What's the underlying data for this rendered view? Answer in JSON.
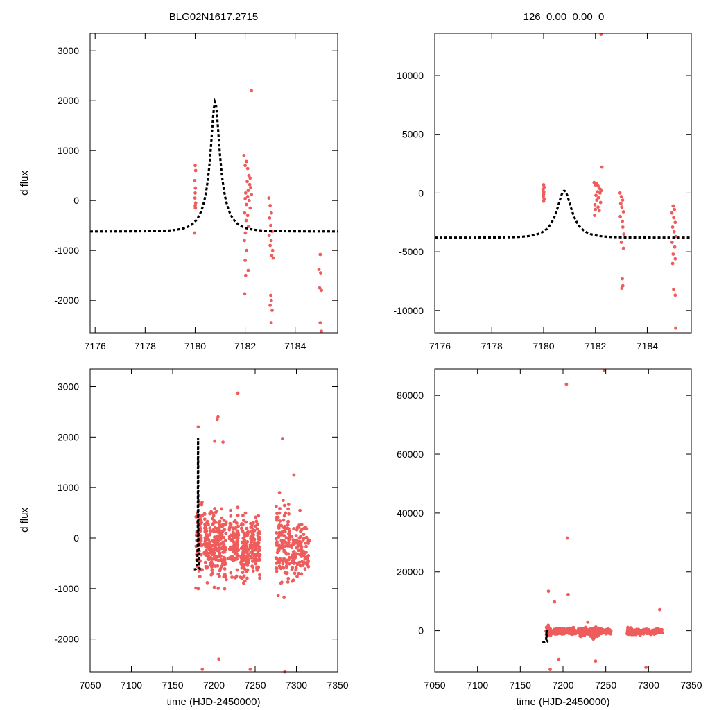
{
  "header": {
    "left_title": "BLG02N1617.2715",
    "right_title": "126  0.00  0.00  0"
  },
  "colors": {
    "data": "#ee5c5c",
    "model": "#000000"
  },
  "chart_data": [
    {
      "id": "zoom-left",
      "type": "scatter",
      "title": "BLG02N1617.2715",
      "xlabel": "",
      "ylabel": "d flux",
      "xlim": [
        7175.8,
        7185.7
      ],
      "ylim": [
        -2650,
        3350
      ],
      "xticks": [
        7176,
        7178,
        7180,
        7182,
        7184
      ],
      "yticks": [
        -2000,
        -1000,
        0,
        1000,
        2000,
        3000
      ],
      "model": {
        "t0": 7180.8,
        "amp": 2600,
        "base": -620,
        "tE": 0.68,
        "u0": 0.26,
        "tmin": 7175.8,
        "tmax": 7185.7
      },
      "points": [
        [
          7180.0,
          700
        ],
        [
          7180.02,
          600
        ],
        [
          7179.98,
          400
        ],
        [
          7180.01,
          250
        ],
        [
          7180.0,
          150
        ],
        [
          7179.99,
          50
        ],
        [
          7180.02,
          -50
        ],
        [
          7180.0,
          -100
        ],
        [
          7180.01,
          -150
        ],
        [
          7179.98,
          -650
        ],
        [
          7181.95,
          900
        ],
        [
          7182.0,
          700
        ],
        [
          7182.05,
          780
        ],
        [
          7182.1,
          640
        ],
        [
          7182.15,
          500
        ],
        [
          7182.2,
          450
        ],
        [
          7182.08,
          380
        ],
        [
          7182.18,
          320
        ],
        [
          7182.22,
          260
        ],
        [
          7182.12,
          200
        ],
        [
          7182.02,
          150
        ],
        [
          7182.25,
          120
        ],
        [
          7182.1,
          80
        ],
        [
          7182.0,
          40
        ],
        [
          7182.16,
          0
        ],
        [
          7182.05,
          -80
        ],
        [
          7182.2,
          -150
        ],
        [
          7181.98,
          -250
        ],
        [
          7182.1,
          -300
        ],
        [
          7182.04,
          -400
        ],
        [
          7182.13,
          -520
        ],
        [
          7182.01,
          -650
        ],
        [
          7181.97,
          -800
        ],
        [
          7182.06,
          -1000
        ],
        [
          7182.0,
          -1200
        ],
        [
          7182.12,
          -1400
        ],
        [
          7182.02,
          -1500
        ],
        [
          7181.98,
          -1870
        ],
        [
          7182.25,
          2200
        ],
        [
          7182.95,
          50
        ],
        [
          7183.0,
          -100
        ],
        [
          7183.05,
          -250
        ],
        [
          7182.98,
          -350
        ],
        [
          7183.02,
          -500
        ],
        [
          7183.08,
          -620
        ],
        [
          7182.96,
          -700
        ],
        [
          7183.04,
          -800
        ],
        [
          7183.0,
          -900
        ],
        [
          7183.1,
          -1000
        ],
        [
          7183.06,
          -1100
        ],
        [
          7183.12,
          -1150
        ],
        [
          7183.02,
          -1900
        ],
        [
          7183.05,
          -2000
        ],
        [
          7183.0,
          -2100
        ],
        [
          7183.08,
          -2200
        ],
        [
          7183.04,
          -2450
        ],
        [
          7185.0,
          -1080
        ],
        [
          7184.95,
          -1380
        ],
        [
          7185.02,
          -1450
        ],
        [
          7184.98,
          -1750
        ],
        [
          7185.05,
          -1800
        ],
        [
          7185.0,
          -2450
        ],
        [
          7185.05,
          -2620
        ]
      ]
    },
    {
      "id": "zoom-right",
      "type": "scatter",
      "title": "126  0.00  0.00  0",
      "xlabel": "",
      "ylabel": "",
      "xlim": [
        7175.8,
        7185.7
      ],
      "ylim": [
        -11900,
        13600
      ],
      "xticks": [
        7176,
        7178,
        7180,
        7182,
        7184
      ],
      "yticks": [
        -10000,
        -5000,
        0,
        5000,
        10000
      ],
      "model": {
        "t0": 7180.8,
        "amp": 4000,
        "base": -3800,
        "tE": 0.65,
        "u0": 0.45,
        "tmin": 7175.8,
        "tmax": 7185.7
      },
      "points": [
        [
          7180.0,
          700
        ],
        [
          7180.02,
          500
        ],
        [
          7179.98,
          300
        ],
        [
          7180.01,
          100
        ],
        [
          7180.0,
          -100
        ],
        [
          7179.99,
          -300
        ],
        [
          7180.02,
          -500
        ],
        [
          7180.0,
          -700
        ],
        [
          7181.95,
          900
        ],
        [
          7182.0,
          700
        ],
        [
          7182.05,
          800
        ],
        [
          7182.1,
          600
        ],
        [
          7182.15,
          400
        ],
        [
          7182.2,
          300
        ],
        [
          7182.22,
          200
        ],
        [
          7182.08,
          100
        ],
        [
          7182.18,
          0
        ],
        [
          7182.02,
          -200
        ],
        [
          7182.12,
          -400
        ],
        [
          7182.05,
          -600
        ],
        [
          7182.2,
          -800
        ],
        [
          7181.98,
          -1000
        ],
        [
          7182.1,
          -1200
        ],
        [
          7182.0,
          -1400
        ],
        [
          7182.15,
          -1500
        ],
        [
          7181.97,
          -1900
        ],
        [
          7182.25,
          2200
        ],
        [
          7182.22,
          13500
        ],
        [
          7182.95,
          0
        ],
        [
          7183.0,
          -300
        ],
        [
          7183.05,
          -600
        ],
        [
          7182.98,
          -900
        ],
        [
          7183.02,
          -1200
        ],
        [
          7183.08,
          -1600
        ],
        [
          7182.96,
          -2000
        ],
        [
          7183.04,
          -2400
        ],
        [
          7183.06,
          -2900
        ],
        [
          7183.1,
          -3500
        ],
        [
          7183.0,
          -4200
        ],
        [
          7183.08,
          -4700
        ],
        [
          7183.04,
          -7300
        ],
        [
          7183.06,
          -7900
        ],
        [
          7183.02,
          -8100
        ],
        [
          7185.0,
          -1100
        ],
        [
          7185.05,
          -1400
        ],
        [
          7184.95,
          -1700
        ],
        [
          7185.02,
          -2100
        ],
        [
          7185.08,
          -2500
        ],
        [
          7184.98,
          -2900
        ],
        [
          7185.04,
          -3300
        ],
        [
          7185.1,
          -3700
        ],
        [
          7184.96,
          -4200
        ],
        [
          7185.06,
          -4600
        ],
        [
          7185.0,
          -5200
        ],
        [
          7185.08,
          -5600
        ],
        [
          7184.98,
          -6000
        ],
        [
          7185.02,
          -8200
        ],
        [
          7185.08,
          -8700
        ],
        [
          7185.1,
          -11500
        ]
      ]
    },
    {
      "id": "full-left",
      "type": "scatter",
      "title": "",
      "xlabel": "time (HJD-2450000)",
      "ylabel": "d flux",
      "xlim": [
        7050,
        7350
      ],
      "ylim": [
        -2650,
        3350
      ],
      "xticks": [
        7050,
        7100,
        7150,
        7200,
        7250,
        7300,
        7350
      ],
      "yticks": [
        -2000,
        -1000,
        0,
        1000,
        2000,
        3000
      ],
      "model": {
        "t0": 7180.8,
        "amp": 2600,
        "base": -620,
        "tE": 0.68,
        "u0": 0.26,
        "tmin": 7175.8,
        "tmax": 7185.7
      },
      "clusters": [
        {
          "x": [
            7178,
            7186
          ],
          "n": 60,
          "center": 0,
          "spread": 850,
          "seed": 11
        },
        {
          "x": [
            7188,
            7215
          ],
          "n": 230,
          "center": -150,
          "spread": 700,
          "seed": 22
        },
        {
          "x": [
            7218,
            7230
          ],
          "n": 90,
          "center": -100,
          "spread": 650,
          "seed": 33
        },
        {
          "x": [
            7232,
            7242
          ],
          "n": 90,
          "center": -250,
          "spread": 650,
          "seed": 44
        },
        {
          "x": [
            7244,
            7256
          ],
          "n": 100,
          "center": -200,
          "spread": 600,
          "seed": 55
        },
        {
          "x": [
            7275,
            7292
          ],
          "n": 120,
          "center": -100,
          "spread": 800,
          "seed": 66
        },
        {
          "x": [
            7294,
            7316
          ],
          "n": 110,
          "center": -250,
          "spread": 600,
          "seed": 77
        }
      ],
      "points": [
        [
          7181,
          2200
        ],
        [
          7205,
          2400
        ],
        [
          7204,
          2350
        ],
        [
          7229,
          2870
        ],
        [
          7283,
          1970
        ],
        [
          7211,
          1900
        ],
        [
          7201,
          1920
        ],
        [
          7297,
          1250
        ],
        [
          7186,
          -2600
        ],
        [
          7206,
          -2400
        ],
        [
          7244,
          -2600
        ],
        [
          7286,
          -2650
        ]
      ]
    },
    {
      "id": "full-right",
      "type": "scatter",
      "title": "",
      "xlabel": "time (HJD-2450000)",
      "ylabel": "",
      "xlim": [
        7050,
        7350
      ],
      "ylim": [
        -14000,
        89000
      ],
      "xticks": [
        7050,
        7100,
        7150,
        7200,
        7250,
        7300,
        7350
      ],
      "yticks": [
        0,
        20000,
        40000,
        60000,
        80000
      ],
      "model": {
        "t0": 7180.8,
        "amp": 4000,
        "base": -3800,
        "tE": 0.65,
        "u0": 0.45,
        "tmin": 7175.8,
        "tmax": 7185.7
      },
      "clusters": [
        {
          "x": [
            7180,
            7186
          ],
          "n": 40,
          "center": 0,
          "spread": 1800,
          "seed": 101
        },
        {
          "x": [
            7188,
            7215
          ],
          "n": 220,
          "center": -200,
          "spread": 900,
          "seed": 102
        },
        {
          "x": [
            7218,
            7230
          ],
          "n": 80,
          "center": -500,
          "spread": 1300,
          "seed": 103
        },
        {
          "x": [
            7232,
            7242
          ],
          "n": 80,
          "center": -800,
          "spread": 1500,
          "seed": 104
        },
        {
          "x": [
            7244,
            7256
          ],
          "n": 100,
          "center": -300,
          "spread": 800,
          "seed": 105
        },
        {
          "x": [
            7275,
            7292
          ],
          "n": 120,
          "center": -300,
          "spread": 1200,
          "seed": 106
        },
        {
          "x": [
            7294,
            7316
          ],
          "n": 110,
          "center": -300,
          "spread": 900,
          "seed": 107
        }
      ],
      "points": [
        [
          7248,
          88500
        ],
        [
          7204,
          83800
        ],
        [
          7205,
          31500
        ],
        [
          7206,
          12300
        ],
        [
          7183,
          13400
        ],
        [
          7190,
          9800
        ],
        [
          7313,
          7200
        ],
        [
          7229,
          2900
        ],
        [
          7195,
          -9800
        ],
        [
          7238,
          -10400
        ],
        [
          7297,
          -12500
        ],
        [
          7185,
          -13200
        ]
      ]
    }
  ]
}
